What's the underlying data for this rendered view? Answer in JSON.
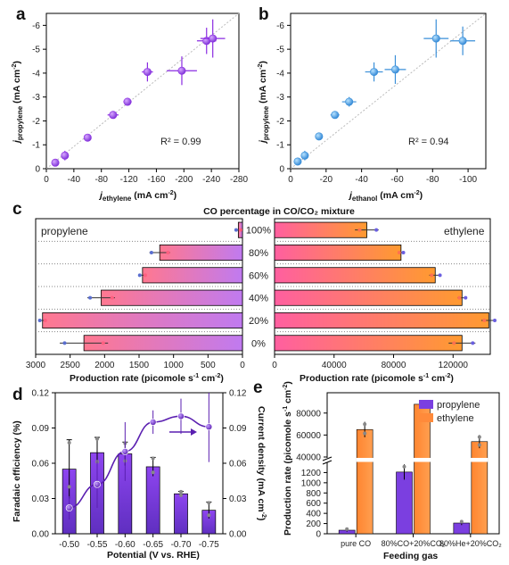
{
  "chart_data": [
    {
      "panel": "a",
      "type": "scatter",
      "xlabel": "j_ethylene (mA cm^-2)",
      "ylabel": "j_propylene (mA cm^-2)",
      "xlim": [
        0,
        -280
      ],
      "ylim": [
        0,
        -6.5
      ],
      "xticks": [
        0,
        -40,
        -80,
        -120,
        -160,
        -200,
        -240,
        -280
      ],
      "yticks": [
        0,
        -1,
        -2,
        -3,
        -4,
        -5,
        -6
      ],
      "annotation": "R² = 0.99",
      "color": "#8a2be2",
      "points": [
        {
          "x": -13,
          "y": -0.25,
          "xerr": 2,
          "yerr": 0.05
        },
        {
          "x": -27,
          "y": -0.55,
          "xerr": 5,
          "yerr": 0.2
        },
        {
          "x": -60,
          "y": -1.3,
          "xerr": 3,
          "yerr": 0.1
        },
        {
          "x": -97,
          "y": -2.25,
          "xerr": 8,
          "yerr": 0.15
        },
        {
          "x": -118,
          "y": -2.8,
          "xerr": 6,
          "yerr": 0.15
        },
        {
          "x": -147,
          "y": -4.05,
          "xerr": 8,
          "yerr": 0.4
        },
        {
          "x": -197,
          "y": -4.1,
          "xerr": 22,
          "yerr": 0.6
        },
        {
          "x": -233,
          "y": -5.35,
          "xerr": 14,
          "yerr": 0.55
        },
        {
          "x": -242,
          "y": -5.45,
          "xerr": 18,
          "yerr": 0.8
        }
      ]
    },
    {
      "panel": "b",
      "type": "scatter",
      "xlabel": "j_ethanol (mA cm^-2)",
      "ylabel": "j_propylene (mA cm^-2)",
      "xlim": [
        0,
        -110
      ],
      "ylim": [
        0,
        -6.5
      ],
      "xticks": [
        0,
        -20,
        -40,
        -60,
        -80,
        -100
      ],
      "yticks": [
        0,
        -1,
        -2,
        -3,
        -4,
        -5,
        -6
      ],
      "annotation": "R² = 0.94",
      "color": "#3a8fd8",
      "points": [
        {
          "x": -4,
          "y": -0.3,
          "xerr": 1,
          "yerr": 0.05
        },
        {
          "x": -8,
          "y": -0.55,
          "xerr": 1.5,
          "yerr": 0.2
        },
        {
          "x": -16,
          "y": -1.35,
          "xerr": 2,
          "yerr": 0.1
        },
        {
          "x": -25,
          "y": -2.25,
          "xerr": 2.5,
          "yerr": 0.15
        },
        {
          "x": -33,
          "y": -2.8,
          "xerr": 4,
          "yerr": 0.2
        },
        {
          "x": -47,
          "y": -4.05,
          "xerr": 5,
          "yerr": 0.4
        },
        {
          "x": -59,
          "y": -4.15,
          "xerr": 6,
          "yerr": 0.6
        },
        {
          "x": -82,
          "y": -5.45,
          "xerr": 7,
          "yerr": 0.8
        },
        {
          "x": -97,
          "y": -5.35,
          "xerr": 7,
          "yerr": 0.6
        }
      ]
    },
    {
      "panel": "c",
      "type": "bar",
      "orientation": "horizontal",
      "title": "CO percentage in CO/CO₂ mixture",
      "categories": [
        "100%",
        "80%",
        "60%",
        "40%",
        "20%",
        "0%"
      ],
      "xlabel": "Production rate (picomole s⁻¹ cm⁻²)",
      "series": [
        {
          "name": "propylene",
          "values": [
            60,
            1200,
            1450,
            2050,
            2900,
            2300
          ],
          "errors": [
            40,
            150,
            50,
            200,
            50,
            350
          ],
          "xlim": [
            3000,
            0
          ],
          "xticks": [
            3000,
            2500,
            2000,
            1500,
            1000,
            500,
            0
          ]
        },
        {
          "name": "ethylene",
          "values": [
            62000,
            85000,
            108000,
            126000,
            144000,
            126000
          ],
          "errors": [
            8000,
            2000,
            4000,
            3000,
            5000,
            9000
          ],
          "xlim": [
            0,
            145000
          ],
          "xticks": [
            0,
            40000,
            80000,
            120000
          ]
        }
      ]
    },
    {
      "panel": "d",
      "type": "bar",
      "categories": [
        "-0.50",
        "-0.55",
        "-0.60",
        "-0.65",
        "-0.70",
        "-0.75"
      ],
      "xlabel": "Potential (V vs. RHE)",
      "ylabel": "Faradaic efficiency (%)",
      "ylabel_right": "Current density (mA cm⁻²)",
      "ylim": [
        0,
        0.12
      ],
      "yticks": [
        0.0,
        0.03,
        0.06,
        0.09,
        0.12
      ],
      "series": [
        {
          "name": "Faradaic efficiency",
          "values": [
            0.055,
            0.069,
            0.068,
            0.057,
            0.034,
            0.02
          ],
          "errors": [
            0.025,
            0.013,
            0.01,
            0.008,
            0.002,
            0.007
          ]
        },
        {
          "name": "Current density",
          "type": "line",
          "values": [
            0.022,
            0.042,
            0.07,
            0.095,
            0.1,
            0.091
          ],
          "errors": [
            0.01,
            0.02,
            0.025,
            0.01,
            0.015,
            0.03
          ]
        }
      ]
    },
    {
      "panel": "e",
      "type": "bar",
      "categories": [
        "pure CO",
        "80%CO+20%CO₂",
        "80%He+20%CO₂"
      ],
      "xlabel": "Feeding gas",
      "ylabel": "Production rate (picomole s⁻¹ cm⁻²)",
      "axis_break": [
        1400,
        40000
      ],
      "yticks_low": [
        0,
        200,
        400,
        600,
        800,
        1000,
        1200
      ],
      "yticks_high": [
        40000,
        60000,
        80000
      ],
      "legend_position": "top-right",
      "series": [
        {
          "name": "propylene",
          "values": [
            70,
            1210,
            210
          ],
          "errors": [
            30,
            150,
            40
          ]
        },
        {
          "name": "ethylene",
          "values": [
            65000,
            88000,
            54000
          ],
          "errors": [
            7000,
            2000,
            6000
          ]
        }
      ]
    }
  ],
  "labels": {
    "a": "a",
    "b": "b",
    "c": "c",
    "d": "d",
    "e": "e",
    "ax_ticks_y": [
      "0",
      "-1",
      "-2",
      "-3",
      "-4",
      "-5",
      "-6"
    ],
    "ax_ticks_x": [
      "0",
      "-40",
      "-80",
      "-120",
      "-160",
      "-200",
      "-240",
      "-280"
    ],
    "bx_ticks": [
      "0",
      "-20",
      "-40",
      "-60",
      "-80",
      "-100"
    ],
    "a_r2": "R² = 0.99",
    "b_r2": "R² = 0.94",
    "j": "j",
    "sub_propylene": "propylene",
    "sub_ethylene": "ethylene",
    "sub_ethanol": "ethanol",
    "ma_unit": " (mA cm",
    "sup_m2": "-2",
    "close_paren": ")",
    "c_title": "CO percentage in CO/CO₂ mixture",
    "c_left_name": "propylene",
    "c_right_name": "ethylene",
    "c_pct": [
      "100%",
      "80%",
      "60%",
      "40%",
      "20%",
      "0%"
    ],
    "c_left_ticks": [
      "3000",
      "2500",
      "2000",
      "1500",
      "1000",
      "500",
      "0"
    ],
    "c_right_ticks": [
      "0",
      "40000",
      "80000",
      "120000"
    ],
    "c_xlabel": "Production rate (picomole s",
    "c_xlabel_right": "Production rate (picomole s",
    "unit_s": "-1",
    "unit_cm": " cm",
    "d_ticks": [
      "0.00",
      "0.03",
      "0.06",
      "0.09",
      "0.12"
    ],
    "d_cats": [
      "-0.50",
      "-0.55",
      "-0.60",
      "-0.65",
      "-0.70",
      "-0.75"
    ],
    "d_xlabel": "Potential (V vs. RHE)",
    "d_ylabel": "Faradaic efficiency (%)",
    "d_ylabel_right": "Current density (mA cm",
    "e_ticks_low": [
      "0",
      "200",
      "400",
      "600",
      "800",
      "1000",
      "1200"
    ],
    "e_ticks_high": [
      "40000",
      "60000",
      "80000"
    ],
    "e_cats": [
      "pure CO",
      "80%CO+20%CO₂",
      "80%He+20%CO₂"
    ],
    "e_xlabel": "Feeding gas",
    "e_ylabel": "Production rate (picomole s",
    "e_legend": [
      "propylene",
      "ethylene"
    ]
  },
  "colors": {
    "purple": "#8a2be2",
    "blue": "#3a8fd8",
    "barOrange": "#ff8a3a",
    "barPinkA": "#ff7aa0",
    "barPurpleA": "#b86cf0",
    "dBar": "#7b3fe0"
  }
}
